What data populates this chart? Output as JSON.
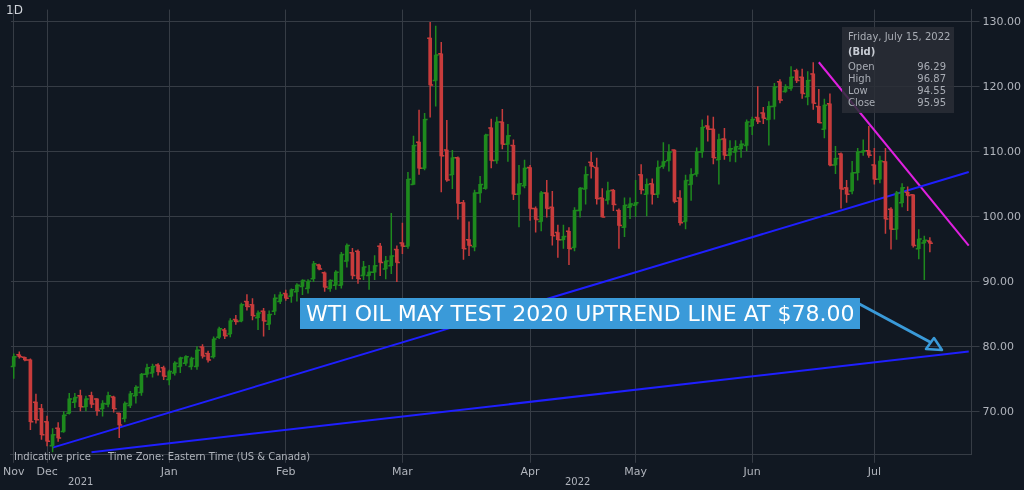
{
  "chart_data": {
    "type": "candlestick",
    "categories": [
      "Nov",
      null,
      null,
      null,
      null,
      null,
      "Dec",
      null,
      null,
      null,
      null,
      null,
      null,
      null,
      null,
      null,
      null,
      null,
      null,
      null,
      null,
      null,
      null,
      null,
      null,
      null,
      null,
      null,
      "Jan",
      null,
      null,
      null,
      null,
      null,
      null,
      null,
      null,
      null,
      null,
      null,
      null,
      null,
      null,
      null,
      null,
      null,
      null,
      null,
      null,
      "Feb",
      null,
      null,
      null,
      null,
      null,
      null,
      null,
      null,
      null,
      null,
      null,
      null,
      null,
      null,
      null,
      null,
      null,
      null,
      null,
      null,
      "Mar",
      null,
      null,
      null,
      null,
      null,
      null,
      null,
      null,
      null,
      null,
      null,
      null,
      null,
      null,
      null,
      null,
      null,
      null,
      null,
      null,
      null,
      null,
      "Apr",
      null,
      null,
      null,
      null,
      null,
      null,
      null,
      null,
      null,
      null,
      null,
      null,
      null,
      null,
      null,
      null,
      null,
      null,
      "May",
      null,
      null,
      null,
      null,
      null,
      null,
      null,
      null,
      null,
      null,
      null,
      null,
      null,
      null,
      null,
      null,
      null,
      null,
      null,
      null,
      "Jun",
      null,
      null,
      null,
      null,
      null,
      null,
      null,
      null,
      null,
      null,
      null,
      null,
      null,
      null,
      null,
      null,
      null,
      null,
      null,
      null,
      null,
      "Jul",
      null,
      null,
      null,
      null,
      null,
      null,
      null,
      null,
      null,
      null,
      null,
      null,
      null,
      null,
      null,
      null,
      null
    ],
    "ohlc": [
      [
        77.0,
        79.0,
        75.1,
        78.5
      ],
      [
        78.8,
        79.3,
        78.2,
        78.5
      ],
      [
        78.4,
        78.5,
        77.8,
        78.0
      ],
      [
        78.0,
        78.2,
        67.2,
        68.5
      ],
      [
        71.5,
        72.8,
        68.2,
        68.8
      ],
      [
        70.5,
        71.2,
        65.7,
        66.5
      ],
      [
        68.5,
        69.4,
        64.7,
        65.5
      ],
      [
        64.8,
        67.5,
        63.8,
        66.5
      ],
      [
        67.5,
        68.4,
        65.4,
        66.0
      ],
      [
        67.0,
        70.1,
        66.8,
        69.5
      ],
      [
        69.8,
        72.9,
        69.6,
        72.0
      ],
      [
        71.5,
        72.9,
        70.6,
        72.2
      ],
      [
        72.5,
        73.4,
        70.1,
        70.8
      ],
      [
        70.8,
        72.5,
        70.1,
        72.0
      ],
      [
        72.5,
        73.1,
        70.6,
        71.2
      ],
      [
        72.0,
        72.1,
        69.4,
        70.2
      ],
      [
        70.5,
        71.8,
        69.3,
        71.3
      ],
      [
        71.2,
        73.1,
        70.7,
        72.5
      ],
      [
        72.3,
        72.5,
        69.9,
        70.5
      ],
      [
        69.8,
        69.9,
        66.0,
        68.0
      ],
      [
        69.0,
        71.6,
        68.4,
        71.3
      ],
      [
        71.0,
        73.2,
        70.6,
        72.8
      ],
      [
        72.5,
        74.1,
        71.3,
        73.8
      ],
      [
        73.0,
        76.0,
        72.5,
        75.8
      ],
      [
        75.8,
        77.4,
        75.3,
        76.8
      ],
      [
        76.0,
        77.4,
        75.3,
        77.0
      ],
      [
        77.2,
        77.5,
        75.6,
        76.2
      ],
      [
        76.8,
        77.1,
        74.9,
        75.5
      ],
      [
        75.0,
        76.5,
        74.1,
        76.2
      ],
      [
        76.0,
        77.8,
        75.6,
        77.5
      ],
      [
        77.0,
        78.5,
        76.0,
        78.3
      ],
      [
        77.5,
        78.7,
        77.1,
        78.5
      ],
      [
        77.0,
        78.5,
        76.5,
        78.2
      ],
      [
        77.0,
        80.1,
        76.5,
        79.5
      ],
      [
        80.0,
        80.4,
        78.2,
        78.6
      ],
      [
        79.0,
        79.4,
        77.6,
        78.0
      ],
      [
        78.5,
        81.6,
        78.2,
        81.2
      ],
      [
        81.5,
        83.1,
        81.2,
        82.8
      ],
      [
        82.6,
        82.9,
        81.2,
        81.7
      ],
      [
        82.0,
        84.4,
        81.5,
        84.0
      ],
      [
        84.2,
        84.9,
        83.4,
        83.9
      ],
      [
        84.0,
        86.8,
        83.8,
        86.5
      ],
      [
        87.0,
        88.1,
        85.6,
        86.2
      ],
      [
        86.5,
        87.5,
        84.1,
        84.8
      ],
      [
        84.5,
        85.6,
        82.6,
        85.2
      ],
      [
        85.5,
        86.0,
        81.6,
        84.0
      ],
      [
        83.5,
        85.6,
        82.6,
        85.0
      ],
      [
        85.5,
        88.1,
        84.9,
        87.5
      ],
      [
        87.0,
        88.5,
        86.6,
        88.0
      ],
      [
        88.2,
        88.8,
        87.1,
        87.5
      ],
      [
        87.8,
        89.0,
        86.8,
        88.8
      ],
      [
        88.5,
        89.8,
        87.0,
        89.5
      ],
      [
        89.3,
        90.4,
        88.0,
        90.2
      ],
      [
        89.0,
        90.4,
        88.2,
        90.1
      ],
      [
        90.5,
        93.2,
        90.0,
        92.8
      ],
      [
        92.6,
        92.8,
        91.8,
        92.0
      ],
      [
        91.4,
        91.6,
        88.5,
        89.2
      ],
      [
        89.0,
        90.4,
        88.5,
        90.2
      ],
      [
        89.5,
        91.8,
        88.8,
        91.5
      ],
      [
        89.5,
        94.6,
        89.0,
        94.2
      ],
      [
        93.2,
        95.9,
        92.2,
        95.6
      ],
      [
        94.5,
        95.2,
        90.4,
        91.0
      ],
      [
        94.7,
        95.0,
        89.7,
        90.5
      ],
      [
        91.0,
        93.2,
        90.3,
        92.3
      ],
      [
        91.0,
        92.6,
        88.8,
        91.5
      ],
      [
        91.5,
        94.1,
        90.3,
        92.5
      ],
      [
        95.5,
        96.0,
        90.9,
        93.0
      ],
      [
        92.0,
        94.0,
        90.4,
        93.2
      ],
      [
        92.5,
        100.6,
        91.2,
        94.0
      ],
      [
        95.0,
        95.6,
        90.0,
        93.0
      ],
      [
        96.0,
        99.1,
        94.3,
        95.5
      ],
      [
        95.5,
        106.9,
        95.1,
        105.8
      ],
      [
        105.0,
        112.5,
        105.0,
        111.0
      ],
      [
        111.5,
        116.5,
        106.5,
        107.5
      ],
      [
        107.5,
        116.0,
        107.2,
        115.0
      ],
      [
        127.5,
        130.0,
        115.3,
        120.3
      ],
      [
        121.0,
        129.4,
        117.0,
        124.9
      ],
      [
        125.1,
        126.9,
        103.8,
        109.4
      ],
      [
        110.3,
        114.9,
        105.4,
        105.7
      ],
      [
        106.5,
        110.3,
        104.3,
        109.1
      ],
      [
        109.1,
        109.3,
        99.6,
        102.1
      ],
      [
        102.2,
        102.6,
        93.4,
        95.1
      ],
      [
        96.5,
        99.3,
        94.0,
        95.6
      ],
      [
        95.4,
        104.2,
        94.7,
        103.7
      ],
      [
        103.7,
        106.3,
        102.2,
        105.0
      ],
      [
        104.4,
        112.8,
        104.2,
        112.6
      ],
      [
        113.7,
        115.1,
        107.5,
        108.7
      ],
      [
        108.7,
        115.4,
        108.2,
        114.6
      ],
      [
        114.6,
        116.6,
        110.4,
        111.2
      ],
      [
        111.2,
        114.3,
        108.5,
        112.5
      ],
      [
        111.0,
        111.9,
        102.6,
        103.5
      ],
      [
        103.5,
        108.0,
        98.4,
        105.1
      ],
      [
        104.8,
        108.8,
        104.4,
        107.5
      ],
      [
        107.6,
        108.0,
        99.4,
        101.3
      ],
      [
        101.3,
        101.6,
        97.6,
        99.6
      ],
      [
        99.3,
        104.0,
        97.8,
        103.7
      ],
      [
        103.7,
        105.7,
        99.9,
        101.3
      ],
      [
        101.5,
        104.0,
        95.6,
        97.1
      ],
      [
        97.6,
        98.8,
        93.7,
        96.5
      ],
      [
        96.5,
        98.8,
        95.1,
        97.0
      ],
      [
        97.8,
        98.4,
        92.6,
        95.1
      ],
      [
        95.3,
        101.5,
        94.7,
        101.0
      ],
      [
        101.0,
        104.6,
        99.9,
        104.4
      ],
      [
        104.3,
        107.8,
        101.9,
        106.5
      ],
      [
        108.4,
        110.0,
        105.9,
        107.8
      ],
      [
        107.6,
        109.1,
        101.9,
        102.8
      ],
      [
        102.9,
        104.4,
        99.9,
        100.0
      ],
      [
        102.6,
        105.4,
        101.9,
        104.0
      ],
      [
        104.1,
        104.3,
        100.9,
        101.9
      ],
      [
        101.0,
        101.3,
        95.1,
        98.7
      ],
      [
        98.4,
        103.0,
        96.9,
        101.8
      ],
      [
        101.5,
        103.0,
        99.7,
        102.0
      ],
      [
        101.8,
        105.7,
        100.0,
        102.2
      ],
      [
        106.5,
        108.1,
        103.5,
        104.2
      ],
      [
        103.5,
        105.9,
        100.1,
        105.0
      ],
      [
        105.1,
        105.9,
        101.9,
        103.5
      ],
      [
        103.5,
        108.7,
        102.9,
        107.6
      ],
      [
        107.8,
        111.5,
        107.4,
        108.5
      ],
      [
        108.7,
        111.2,
        107.0,
        110.0
      ],
      [
        110.3,
        110.4,
        102.1,
        102.4
      ],
      [
        102.9,
        104.1,
        98.7,
        99.1
      ],
      [
        99.3,
        106.5,
        98.1,
        105.6
      ],
      [
        105.0,
        107.5,
        102.5,
        106.5
      ],
      [
        106.6,
        110.7,
        106.2,
        110.0
      ],
      [
        110.0,
        115.0,
        109.1,
        113.8
      ],
      [
        114.0,
        115.6,
        111.6,
        113.5
      ],
      [
        113.5,
        115.4,
        108.1,
        109.1
      ],
      [
        108.8,
        112.8,
        105.0,
        111.9
      ],
      [
        112.0,
        113.7,
        108.8,
        109.5
      ],
      [
        109.5,
        111.8,
        108.5,
        110.5
      ],
      [
        110.0,
        111.8,
        108.4,
        110.8
      ],
      [
        110.5,
        111.8,
        109.1,
        111.2
      ],
      [
        111.0,
        115.0,
        110.1,
        114.6
      ],
      [
        114.0,
        115.4,
        112.6,
        115.0
      ],
      [
        115.3,
        120.1,
        114.3,
        114.7
      ],
      [
        116.0,
        116.9,
        114.3,
        115.2
      ],
      [
        115.0,
        117.8,
        111.0,
        117.0
      ],
      [
        117.0,
        120.6,
        115.0,
        120.0
      ],
      [
        120.8,
        121.2,
        117.5,
        118.0
      ],
      [
        119.3,
        120.4,
        119.1,
        120.0
      ],
      [
        119.8,
        123.2,
        119.4,
        121.5
      ],
      [
        122.5,
        122.8,
        120.6,
        121.0
      ],
      [
        121.5,
        122.8,
        118.2,
        119.0
      ],
      [
        118.5,
        122.4,
        117.2,
        121.0
      ],
      [
        122.0,
        123.8,
        116.5,
        117.5
      ],
      [
        117.0,
        119.7,
        114.4,
        114.5
      ],
      [
        113.5,
        118.2,
        112.1,
        117.2
      ],
      [
        117.4,
        119.0,
        107.8,
        108.0
      ],
      [
        108.0,
        110.9,
        106.6,
        109.0
      ],
      [
        109.7,
        109.9,
        101.3,
        104.3
      ],
      [
        104.5,
        105.7,
        102.2,
        103.5
      ],
      [
        104.0,
        108.6,
        103.5,
        106.8
      ],
      [
        106.8,
        110.6,
        105.6,
        110.0
      ],
      [
        110.0,
        111.9,
        109.4,
        110.2
      ],
      [
        110.2,
        114.0,
        109.1,
        109.5
      ],
      [
        108.0,
        110.6,
        105.0,
        105.8
      ],
      [
        105.8,
        109.4,
        105.2,
        108.6
      ],
      [
        108.5,
        110.6,
        97.4,
        99.7
      ],
      [
        101.2,
        101.5,
        95.0,
        98.1
      ],
      [
        98.1,
        104.0,
        96.5,
        103.7
      ],
      [
        102.2,
        105.2,
        101.5,
        104.5
      ],
      [
        103.8,
        104.7,
        100.9,
        103.3
      ],
      [
        103.4,
        103.5,
        95.3,
        95.6
      ],
      [
        95.1,
        98.1,
        93.5,
        96.6
      ],
      [
        96.0,
        97.1,
        90.3,
        96.4
      ],
      [
        96.29,
        96.87,
        94.55,
        95.95
      ],
      null,
      null,
      null,
      null,
      null,
      null,
      null
    ],
    "series": [
      {
        "type": "line",
        "color": "#1f1fff",
        "values": [
          null,
          null,
          null,
          null,
          null,
          null,
          null,
          64.5,
          null,
          null,
          null,
          null,
          null,
          null,
          null,
          null,
          null,
          null,
          null,
          null,
          null,
          null,
          null,
          null,
          null,
          null,
          null,
          null,
          null,
          null,
          null,
          null,
          null,
          null,
          null,
          null,
          null,
          null,
          null,
          null,
          null,
          null,
          null,
          null,
          null,
          null,
          null,
          null,
          null,
          null,
          null,
          null,
          null,
          null,
          null,
          null,
          null,
          null,
          null,
          null,
          null,
          null,
          null,
          null,
          null,
          null,
          null,
          null,
          null,
          null,
          null,
          null,
          null,
          null,
          null,
          null,
          null,
          null,
          null,
          null,
          null,
          null,
          null,
          null,
          null,
          null,
          null,
          null,
          null,
          null,
          null,
          null,
          null,
          null,
          null,
          null,
          null,
          null,
          null,
          null,
          null,
          null,
          null,
          null,
          null,
          null,
          null,
          null,
          null,
          null,
          null,
          null,
          null,
          null,
          null,
          null,
          null,
          null,
          null,
          null,
          null,
          null,
          null,
          null,
          null,
          null,
          null,
          null,
          null,
          null,
          null,
          null,
          null,
          null,
          null,
          null,
          null,
          null,
          null,
          null,
          null,
          null,
          null,
          null,
          null,
          null,
          null,
          null,
          null,
          null,
          null,
          null,
          null,
          null,
          null,
          null,
          null,
          null,
          null,
          null,
          null,
          null,
          null,
          null,
          null,
          null,
          null,
          null,
          null,
          null,
          null,
          null,
          106.9
        ]
      },
      {
        "type": "line",
        "color": "#1f1fff",
        "values": [
          null,
          null,
          null,
          null,
          null,
          null,
          null,
          null,
          null,
          null,
          null,
          null,
          null,
          null,
          63.8,
          null,
          null,
          null,
          null,
          null,
          null,
          null,
          null,
          null,
          null,
          null,
          null,
          null,
          null,
          null,
          null,
          null,
          null,
          null,
          null,
          null,
          null,
          null,
          null,
          null,
          null,
          null,
          null,
          null,
          null,
          null,
          null,
          null,
          null,
          null,
          null,
          null,
          null,
          null,
          null,
          null,
          null,
          null,
          null,
          null,
          null,
          null,
          null,
          null,
          null,
          null,
          null,
          null,
          null,
          null,
          null,
          null,
          null,
          null,
          null,
          null,
          null,
          null,
          null,
          null,
          null,
          null,
          null,
          null,
          null,
          null,
          null,
          null,
          null,
          null,
          null,
          null,
          null,
          null,
          null,
          null,
          null,
          null,
          null,
          null,
          null,
          null,
          null,
          null,
          null,
          null,
          null,
          null,
          null,
          null,
          null,
          null,
          null,
          null,
          null,
          null,
          null,
          null,
          null,
          null,
          null,
          null,
          null,
          null,
          null,
          null,
          null,
          null,
          null,
          null,
          null,
          null,
          null,
          null,
          null,
          null,
          null,
          null,
          null,
          null,
          null,
          null,
          null,
          null,
          null,
          null,
          null,
          null,
          null,
          null,
          null,
          null,
          null,
          null,
          null,
          null,
          null,
          null,
          null,
          null,
          null,
          null,
          null,
          null,
          null,
          null,
          null,
          null,
          null,
          null,
          null,
          null,
          79.3
        ]
      },
      {
        "type": "line",
        "color": "#e020e0",
        "values": [
          null,
          null,
          null,
          null,
          null,
          null,
          null,
          null,
          null,
          null,
          null,
          null,
          null,
          null,
          null,
          null,
          null,
          null,
          null,
          null,
          null,
          null,
          null,
          null,
          null,
          null,
          null,
          null,
          null,
          null,
          null,
          null,
          null,
          null,
          null,
          null,
          null,
          null,
          null,
          null,
          null,
          null,
          null,
          null,
          null,
          null,
          null,
          null,
          null,
          null,
          null,
          null,
          null,
          null,
          null,
          null,
          null,
          null,
          null,
          null,
          null,
          null,
          null,
          null,
          null,
          null,
          null,
          null,
          null,
          null,
          null,
          null,
          null,
          null,
          null,
          null,
          null,
          null,
          null,
          null,
          null,
          null,
          null,
          null,
          null,
          null,
          null,
          null,
          null,
          null,
          null,
          null,
          null,
          null,
          null,
          null,
          null,
          null,
          null,
          null,
          null,
          null,
          null,
          null,
          null,
          null,
          null,
          null,
          null,
          null,
          null,
          null,
          null,
          null,
          null,
          null,
          null,
          null,
          null,
          null,
          null,
          null,
          null,
          null,
          null,
          null,
          null,
          null,
          null,
          null,
          null,
          null,
          null,
          null,
          null,
          null,
          null,
          null,
          null,
          null,
          null,
          null,
          null,
          null,
          null,
          123.8,
          null,
          null,
          null,
          null,
          null,
          null,
          null,
          null,
          null,
          null,
          null,
          null,
          null,
          null,
          null,
          null,
          null,
          null,
          null,
          null,
          null,
          null,
          null,
          null,
          null,
          null,
          95.6
        ]
      }
    ],
    "ylim": [
      63.4,
      131.9
    ],
    "yticks": [
      {
        "value": 70,
        "label": "70.00"
      },
      {
        "value": 80,
        "label": "80.00"
      },
      {
        "value": 90,
        "label": "90.00"
      },
      {
        "value": 100,
        "label": "100.00"
      },
      {
        "value": 110,
        "label": "110.00"
      },
      {
        "value": 120,
        "label": "120.00"
      },
      {
        "value": 130,
        "label": "130.00"
      }
    ],
    "grid": true,
    "annotations": [
      "1D",
      "Indicative price",
      "Time Zone: Eastern Time (US & Canada)",
      "2021",
      "2022",
      "WTI OIL MAY TEST 2020 UPTREND LINE AT $78.00",
      "Friday, July 15, 2022",
      "(Bid)",
      "Open",
      "96.29",
      "High",
      "96.87",
      "Low",
      "94.55",
      "Close",
      "95.95"
    ]
  }
}
